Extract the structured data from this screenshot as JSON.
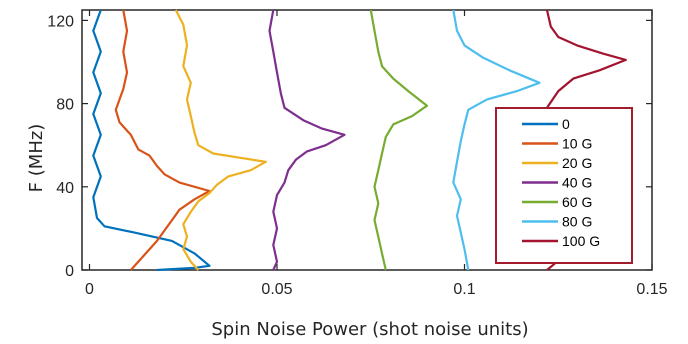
{
  "chart_data": {
    "type": "line",
    "xlabel": "Spin Noise Power (shot noise units)",
    "ylabel": "F (MHz)",
    "xlim": [
      -0.002,
      0.15
    ],
    "ylim": [
      0,
      125
    ],
    "xticks": [
      0,
      0.05,
      0.1,
      0.15
    ],
    "xtick_labels": [
      "0",
      "0.05",
      "0.1",
      "0.15"
    ],
    "yticks": [
      0,
      40,
      80,
      120
    ],
    "ytick_labels": [
      "0",
      "40",
      "80",
      "120"
    ],
    "grid": false,
    "legend": {
      "placement": "bottom-right",
      "border_color": "#a21c2e"
    },
    "series": [
      {
        "name": "0",
        "color": "#0072bd",
        "points": [
          [
            0.003,
            125
          ],
          [
            0.001,
            115
          ],
          [
            0.003,
            105
          ],
          [
            0.001,
            95
          ],
          [
            0.003,
            85
          ],
          [
            0.001,
            75
          ],
          [
            0.003,
            65
          ],
          [
            0.001,
            55
          ],
          [
            0.003,
            45
          ],
          [
            0.001,
            35
          ],
          [
            0.002,
            25
          ],
          [
            0.004,
            21
          ],
          [
            0.012,
            18
          ],
          [
            0.022,
            14
          ],
          [
            0.028,
            8
          ],
          [
            0.032,
            2
          ],
          [
            0.028,
            1
          ],
          [
            0.018,
            0
          ]
        ]
      },
      {
        "name": "10 G",
        "color": "#d95319",
        "points": [
          [
            0.009,
            125
          ],
          [
            0.01,
            115
          ],
          [
            0.009,
            105
          ],
          [
            0.01,
            95
          ],
          [
            0.009,
            87
          ],
          [
            0.007,
            77
          ],
          [
            0.008,
            71
          ],
          [
            0.011,
            65
          ],
          [
            0.013,
            58
          ],
          [
            0.016,
            55
          ],
          [
            0.018,
            50
          ],
          [
            0.02,
            46
          ],
          [
            0.024,
            42
          ],
          [
            0.032,
            38
          ],
          [
            0.028,
            34
          ],
          [
            0.024,
            29
          ],
          [
            0.022,
            24
          ],
          [
            0.02,
            19
          ],
          [
            0.018,
            14
          ],
          [
            0.015,
            8
          ],
          [
            0.013,
            4
          ],
          [
            0.011,
            0
          ]
        ]
      },
      {
        "name": "20 G",
        "color": "#edb120",
        "points": [
          [
            0.023,
            125
          ],
          [
            0.025,
            118
          ],
          [
            0.026,
            108
          ],
          [
            0.025,
            98
          ],
          [
            0.027,
            90
          ],
          [
            0.026,
            82
          ],
          [
            0.027,
            74
          ],
          [
            0.028,
            66
          ],
          [
            0.029,
            60
          ],
          [
            0.033,
            56
          ],
          [
            0.04,
            54
          ],
          [
            0.047,
            52
          ],
          [
            0.043,
            48
          ],
          [
            0.037,
            45
          ],
          [
            0.034,
            41
          ],
          [
            0.032,
            37
          ],
          [
            0.029,
            33
          ],
          [
            0.027,
            28
          ],
          [
            0.025,
            22
          ],
          [
            0.026,
            16
          ],
          [
            0.025,
            10
          ],
          [
            0.027,
            4
          ],
          [
            0.029,
            0
          ]
        ]
      },
      {
        "name": "40 G",
        "color": "#7e2f8e",
        "points": [
          [
            0.049,
            125
          ],
          [
            0.048,
            115
          ],
          [
            0.049,
            105
          ],
          [
            0.05,
            95
          ],
          [
            0.051,
            85
          ],
          [
            0.052,
            78
          ],
          [
            0.057,
            72
          ],
          [
            0.062,
            68
          ],
          [
            0.068,
            65
          ],
          [
            0.063,
            60
          ],
          [
            0.058,
            57
          ],
          [
            0.055,
            53
          ],
          [
            0.053,
            48
          ],
          [
            0.052,
            42
          ],
          [
            0.05,
            36
          ],
          [
            0.049,
            28
          ],
          [
            0.05,
            20
          ],
          [
            0.049,
            12
          ],
          [
            0.05,
            4
          ],
          [
            0.049,
            0
          ]
        ]
      },
      {
        "name": "60 G",
        "color": "#77ac30",
        "points": [
          [
            0.075,
            125
          ],
          [
            0.076,
            115
          ],
          [
            0.077,
            105
          ],
          [
            0.078,
            98
          ],
          [
            0.081,
            92
          ],
          [
            0.085,
            86
          ],
          [
            0.09,
            79
          ],
          [
            0.086,
            74
          ],
          [
            0.081,
            70
          ],
          [
            0.079,
            64
          ],
          [
            0.078,
            56
          ],
          [
            0.077,
            48
          ],
          [
            0.076,
            40
          ],
          [
            0.077,
            32
          ],
          [
            0.076,
            24
          ],
          [
            0.077,
            16
          ],
          [
            0.078,
            8
          ],
          [
            0.079,
            0
          ]
        ]
      },
      {
        "name": "80 G",
        "color": "#4dbeee",
        "points": [
          [
            0.097,
            125
          ],
          [
            0.098,
            115
          ],
          [
            0.1,
            108
          ],
          [
            0.105,
            102
          ],
          [
            0.112,
            96
          ],
          [
            0.12,
            90
          ],
          [
            0.114,
            86
          ],
          [
            0.106,
            82
          ],
          [
            0.101,
            77
          ],
          [
            0.1,
            70
          ],
          [
            0.099,
            62
          ],
          [
            0.098,
            52
          ],
          [
            0.097,
            42
          ],
          [
            0.099,
            34
          ],
          [
            0.098,
            26
          ],
          [
            0.099,
            18
          ],
          [
            0.1,
            10
          ],
          [
            0.101,
            0
          ]
        ]
      },
      {
        "name": "100 G",
        "color": "#a2142f",
        "points": [
          [
            0.122,
            125
          ],
          [
            0.123,
            117
          ],
          [
            0.125,
            112
          ],
          [
            0.13,
            108
          ],
          [
            0.137,
            104
          ],
          [
            0.143,
            101
          ],
          [
            0.136,
            96
          ],
          [
            0.129,
            92
          ],
          [
            0.125,
            86
          ],
          [
            0.122,
            78
          ],
          [
            0.121,
            70
          ],
          [
            0.122,
            60
          ],
          [
            0.121,
            50
          ],
          [
            0.122,
            40
          ],
          [
            0.121,
            30
          ],
          [
            0.122,
            20
          ],
          [
            0.121,
            10
          ],
          [
            0.123,
            5
          ],
          [
            0.124,
            3
          ],
          [
            0.122,
            0
          ]
        ]
      }
    ]
  }
}
